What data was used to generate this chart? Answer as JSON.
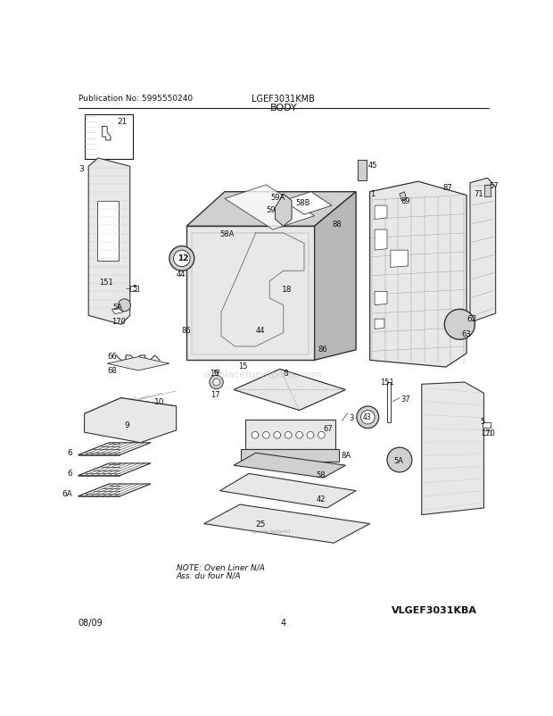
{
  "title": "BODY",
  "header_left": "Publication No: 5995550240",
  "header_center": "LGEF3031KMB",
  "footer_left": "08/09",
  "footer_center": "4",
  "footer_right": "VLGEF3031KBA",
  "note_line1": "NOTE: Oven Liner N/A",
  "note_line2": "Ass. du four N/A",
  "watermark": "ereplacementparts.com",
  "bg_color": "#ffffff",
  "lc": "#1a1a1a",
  "dc": "#333333",
  "fc_light": "#e8e8e8",
  "fc_mid": "#d0d0d0",
  "fc_dark": "#b8b8b8",
  "gray1": "#cccccc",
  "gray2": "#999999"
}
